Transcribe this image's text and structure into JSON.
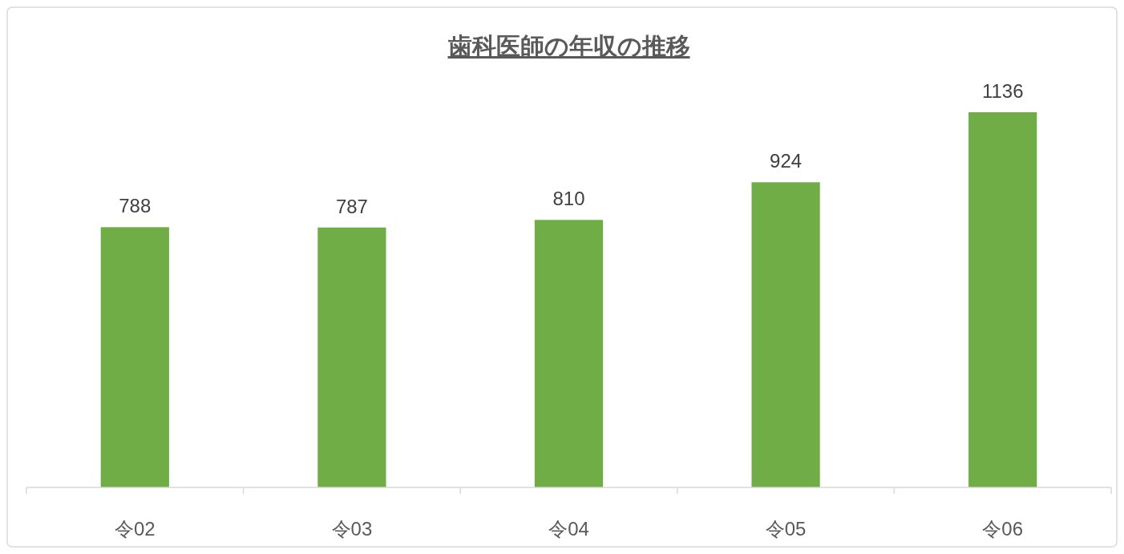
{
  "chart_data": {
    "type": "bar",
    "title": "歯科医師の年収の推移",
    "categories": [
      "令02",
      "令03",
      "令04",
      "令05",
      "令06"
    ],
    "values": [
      788,
      787,
      810,
      924,
      1136
    ],
    "color": "#70ad47",
    "data_labels": true
  }
}
